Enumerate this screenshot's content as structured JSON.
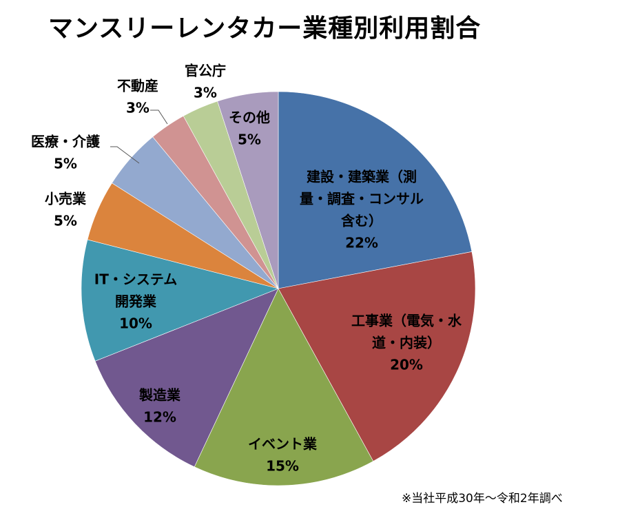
{
  "chart_data": {
    "type": "pie",
    "title": "マンスリーレンタカー業種別利用割合",
    "note": "※当社平成30年～令和2年調べ",
    "start": "top, clockwise",
    "slices": [
      {
        "label_lines": [
          "建設・建築業（測",
          "量・調査・コンサル",
          "含む）"
        ],
        "value": 22,
        "data_label": "22%",
        "color": "#4672A8"
      },
      {
        "label_lines": [
          "工事業（電気・水",
          "道・内装）"
        ],
        "value": 20,
        "data_label": "20%",
        "color": "#A84644"
      },
      {
        "label_lines": [
          "イベント業"
        ],
        "value": 15,
        "data_label": "15%",
        "color": "#89A54E"
      },
      {
        "label_lines": [
          "製造業"
        ],
        "value": 12,
        "data_label": "12%",
        "color": "#71588F"
      },
      {
        "label_lines": [
          "IT・システム",
          "開発業"
        ],
        "value": 10,
        "data_label": "10%",
        "color": "#4198AF"
      },
      {
        "label_lines": [
          "小売業"
        ],
        "value": 5,
        "data_label": "5%",
        "color": "#DB843D"
      },
      {
        "label_lines": [
          "医療・介護"
        ],
        "value": 5,
        "data_label": "5%",
        "color": "#93A9CF"
      },
      {
        "label_lines": [
          "不動産"
        ],
        "value": 3,
        "data_label": "3%",
        "color": "#D09392"
      },
      {
        "label_lines": [
          "官公庁"
        ],
        "value": 3,
        "data_label": "3%",
        "color": "#B9CD96"
      },
      {
        "label_lines": [
          "その他"
        ],
        "value": 5,
        "data_label": "5%",
        "color": "#A99BBD"
      }
    ]
  }
}
